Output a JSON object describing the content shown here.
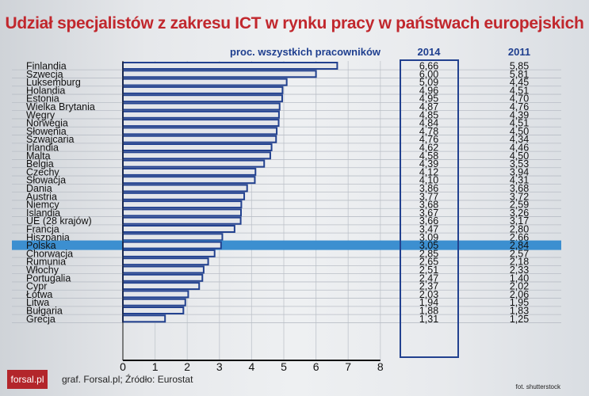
{
  "title": "Udział specjalistów z zakresu ICT w rynku pracy w państwach europejskich",
  "logo": "forsal.pl",
  "credit": "graf. Forsal.pl; Źródło: Eurostat",
  "photo_credit": "fot. shutterstock",
  "colors": {
    "title": "#c1272d",
    "bar_outline": "#22418f",
    "highlight": "#3c8fd0",
    "bar_fill": "#e4e6ea"
  },
  "chart_data": {
    "type": "bar",
    "orientation": "horizontal",
    "title": "Udział specjalistów z zakresu ICT w rynku pracy w państwach europejskich",
    "xlabel": "proc. wszystkich pracowników",
    "xlim": [
      0,
      8
    ],
    "xticks": [
      "0",
      "1",
      "2",
      "3",
      "4",
      "5",
      "6",
      "7",
      "8"
    ],
    "highlight": "Polska",
    "column_headers": [
      "2014",
      "2011"
    ],
    "categories": [
      "Finlandia",
      "Szwecja",
      "Luksemburg",
      "Holandia",
      "Estonia",
      "Wielka Brytania",
      "Węgry",
      "Norwegia",
      "Słowenia",
      "Szwajcaria",
      "Irlandia",
      "Malta",
      "Belgia",
      "Czechy",
      "Słowacja",
      "Dania",
      "Austria",
      "Niemcy",
      "Islandia",
      "UE (28 krajów)",
      "Francja",
      "Hiszpania",
      "Polska",
      "Chorwacja",
      "Rumunia",
      "Włochy",
      "Portugalia",
      "Cypr",
      "Łotwa",
      "Litwa",
      "Bułgaria",
      "Grecja"
    ],
    "series": [
      {
        "name": "2014",
        "values": [
          6.66,
          6.0,
          5.09,
          4.96,
          4.95,
          4.87,
          4.85,
          4.84,
          4.78,
          4.76,
          4.62,
          4.58,
          4.39,
          4.12,
          4.1,
          3.86,
          3.77,
          3.68,
          3.67,
          3.66,
          3.47,
          3.09,
          3.05,
          2.85,
          2.65,
          2.51,
          2.47,
          2.37,
          2.03,
          1.94,
          1.88,
          1.31
        ]
      },
      {
        "name": "2011",
        "values": [
          5.85,
          5.81,
          4.45,
          4.51,
          4.7,
          4.76,
          4.39,
          4.51,
          4.5,
          4.34,
          4.46,
          4.5,
          3.53,
          3.94,
          4.31,
          3.68,
          3.72,
          2.59,
          3.26,
          3.17,
          2.8,
          2.66,
          2.84,
          2.57,
          2.18,
          2.33,
          1.4,
          2.02,
          2.06,
          1.95,
          1.83,
          1.25
        ]
      }
    ]
  }
}
